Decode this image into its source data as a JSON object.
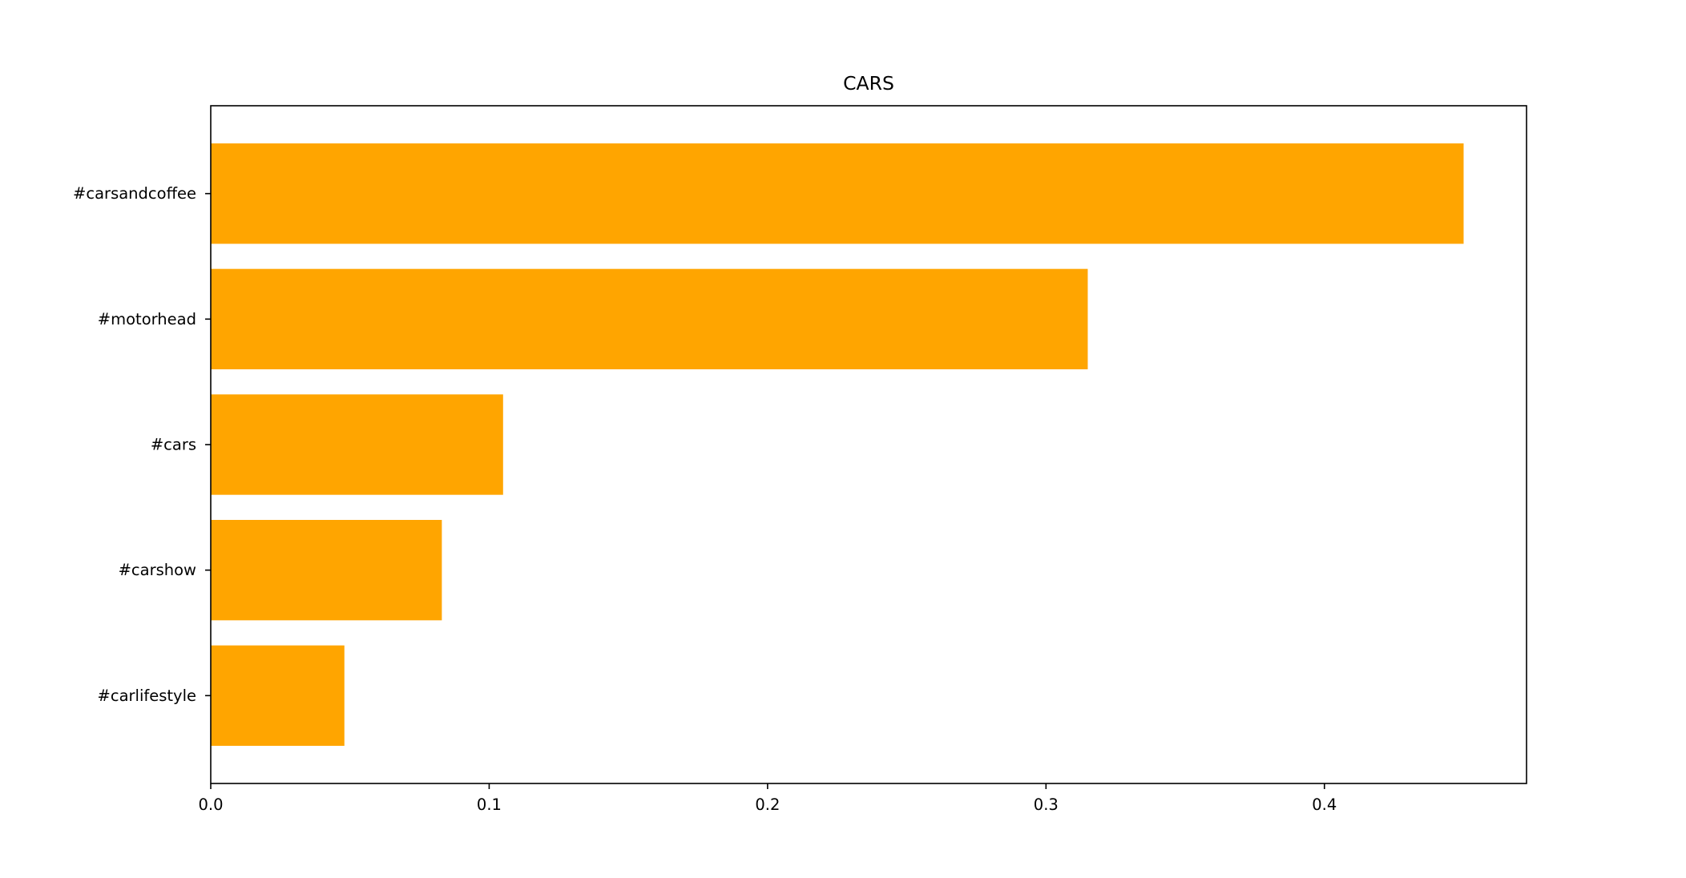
{
  "chart_data": {
    "type": "bar",
    "orientation": "horizontal",
    "title": "CARS",
    "xlabel": "",
    "ylabel": "",
    "categories": [
      "#carsandcoffee",
      "#motorhead",
      "#cars",
      "#carshow",
      "#carlifestyle"
    ],
    "values": [
      0.45,
      0.315,
      0.105,
      0.083,
      0.048
    ],
    "xlim": [
      0,
      0.4726
    ],
    "xticks": [
      "0.0",
      "0.1",
      "0.2",
      "0.3",
      "0.4"
    ],
    "bar_color": "#ffa500",
    "grid": false,
    "legend": "none"
  }
}
